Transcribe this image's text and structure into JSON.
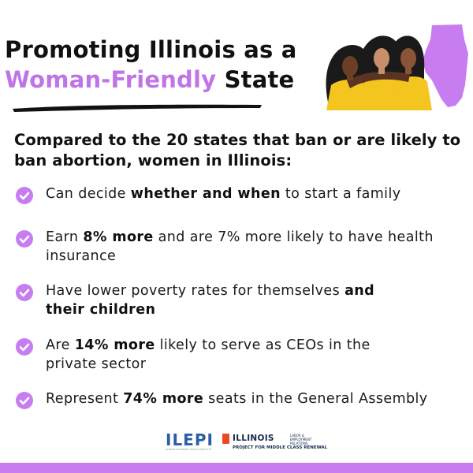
{
  "header": {
    "title_line1": "Promoting Illinois as a",
    "title_accent": "Woman-Friendly",
    "title_rest": "State"
  },
  "intro": "Compared to the 20 states that ban or are likely to ban abortion, women in Illinois:",
  "items": [
    {
      "t1": "Can decide ",
      "b1": "whether and when",
      "t2": " to start a family",
      "b2": "",
      "t3": ""
    },
    {
      "t1": "Earn ",
      "b1": "8% more",
      "t2": " and are 7% more likely to have health insurance",
      "b2": "",
      "t3": ""
    },
    {
      "t1": "Have lower poverty rates for themselves ",
      "b1": "and their children",
      "t2": "",
      "b2": "",
      "t3": ""
    },
    {
      "t1": "Are ",
      "b1": "14% more",
      "t2": " likely to serve as CEOs in the private sector",
      "b2": "",
      "t3": ""
    },
    {
      "t1": "Represent ",
      "b1": "74% more",
      "t2": " seats in the General Assembly",
      "b2": "",
      "t3": ""
    }
  ],
  "logos": {
    "ilepi": "ILEPI",
    "ilepi_sub": "ILLINOIS ECONOMIC POLICY INSTITUTE",
    "uiuc_name": "ILLINOIS",
    "uiuc_dept": "LABOR & EMPLOYMENT RELATIONS",
    "uiuc_project": "PROJECT FOR MIDDLE CLASS RENEWAL"
  },
  "colors": {
    "accent": "#c074e6",
    "check": "#c77df0",
    "illinois_map": "#c77df0",
    "footer": "#c77df0",
    "shirts": "#f4c51f"
  },
  "icons": [
    "check-circle-icon",
    "women-group-illustration",
    "illinois-map-icon",
    "brush-underline"
  ]
}
